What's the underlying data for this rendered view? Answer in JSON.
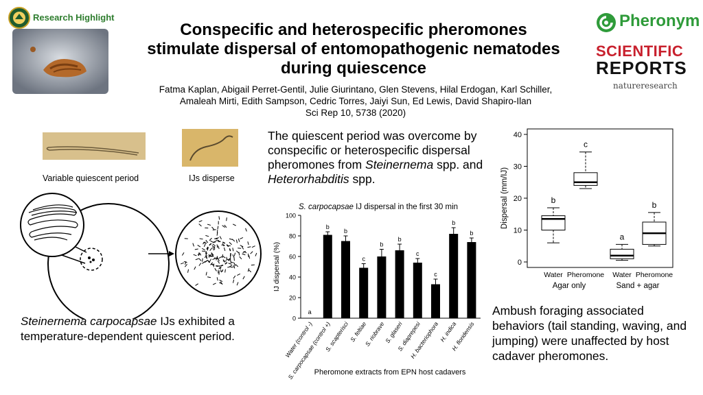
{
  "header": {
    "badge_label": "Research Highlight",
    "title_lines": [
      "Conspecific and heterospecific pheromones",
      "stimulate dispersal of entomopathogenic nematodes",
      "during quiescence"
    ],
    "author_lines": [
      "Fatma Kaplan, Abigail Perret-Gentil, Julie Giurintano, Glen Stevens, Hilal Erdogan, Karl Schiller,",
      "Amaleah Mirti, Edith Sampson, Cedric Torres, Jaiyi Sun, Ed Lewis, David Shapiro-Ilan",
      "Sci Rep 10, 5738 (2020)"
    ],
    "pheronym_logo": "Pheronym",
    "journal_line1": "SCIENTIFIC",
    "journal_line2": "REPORTS",
    "publisher": "natureresearch"
  },
  "left_panel": {
    "label_quiescent": "Variable quiescent period",
    "label_disperse": "IJs disperse",
    "caption_italic": "Steinernema carpocapsae",
    "caption_rest": " IJs exhibited a temperature-dependent quiescent period."
  },
  "middle_panel": {
    "text_1": "The quiescent period was overcome by conspecific or heterospecific dispersal pheromones from ",
    "text_italic_1": "Steinernema",
    "text_2": " spp. and ",
    "text_italic_2": "Heterorhabditis",
    "text_3": " spp."
  },
  "right_panel": {
    "text": "Ambush foraging associated behaviors (tail standing, waving, and jumping) were unaffected by host cadaver pheromones."
  },
  "chart_data": [
    {
      "type": "bar",
      "title_italic": "S. carpocapsae",
      "title_rest": " IJ dispersal in the first 30 min",
      "xlabel": "Pheromone extracts from EPN host cadavers",
      "ylabel": "IJ dispersal (%)",
      "ylim": [
        0,
        100
      ],
      "yticks": [
        0,
        20,
        40,
        60,
        80,
        100
      ],
      "categories": [
        "Water (control -)",
        "S. carpocapsae (control +)",
        "S. scapterisci",
        "S. feltiae",
        "S. riobrave",
        "S. glaseri",
        "S. diaprepesi",
        "H. bacteriophora",
        "H. indica",
        "H. floridensis"
      ],
      "values": [
        0,
        81,
        75,
        49,
        60,
        66,
        54,
        33,
        82,
        74
      ],
      "errors": [
        0,
        3,
        5,
        4,
        7,
        6,
        4,
        5,
        6,
        4
      ],
      "letters": [
        "a",
        "b",
        "b",
        "c",
        "b",
        "b",
        "c",
        "c",
        "b",
        "b"
      ],
      "bar_color": "#000000"
    },
    {
      "type": "box",
      "ylabel": "Dispersal (mm/IJ)",
      "ylim": [
        0,
        40
      ],
      "yticks": [
        0,
        10,
        20,
        30,
        40
      ],
      "box_labels": [
        "Water",
        "Pheromone",
        "Water",
        "Pheromone"
      ],
      "groups": [
        "Agar only",
        "Sand + agar"
      ],
      "boxes": [
        {
          "min": 6,
          "q1": 10,
          "median": 13.5,
          "q3": 14.5,
          "max": 17,
          "letter": "b"
        },
        {
          "min": 23,
          "q1": 24,
          "median": 25,
          "q3": 28,
          "max": 34.5,
          "letter": "c"
        },
        {
          "min": 0.5,
          "q1": 1,
          "median": 2,
          "q3": 4,
          "max": 5.5,
          "letter": "a"
        },
        {
          "min": 5,
          "q1": 5.5,
          "median": 9,
          "q3": 12.5,
          "max": 15.5,
          "letter": "b"
        }
      ]
    }
  ]
}
